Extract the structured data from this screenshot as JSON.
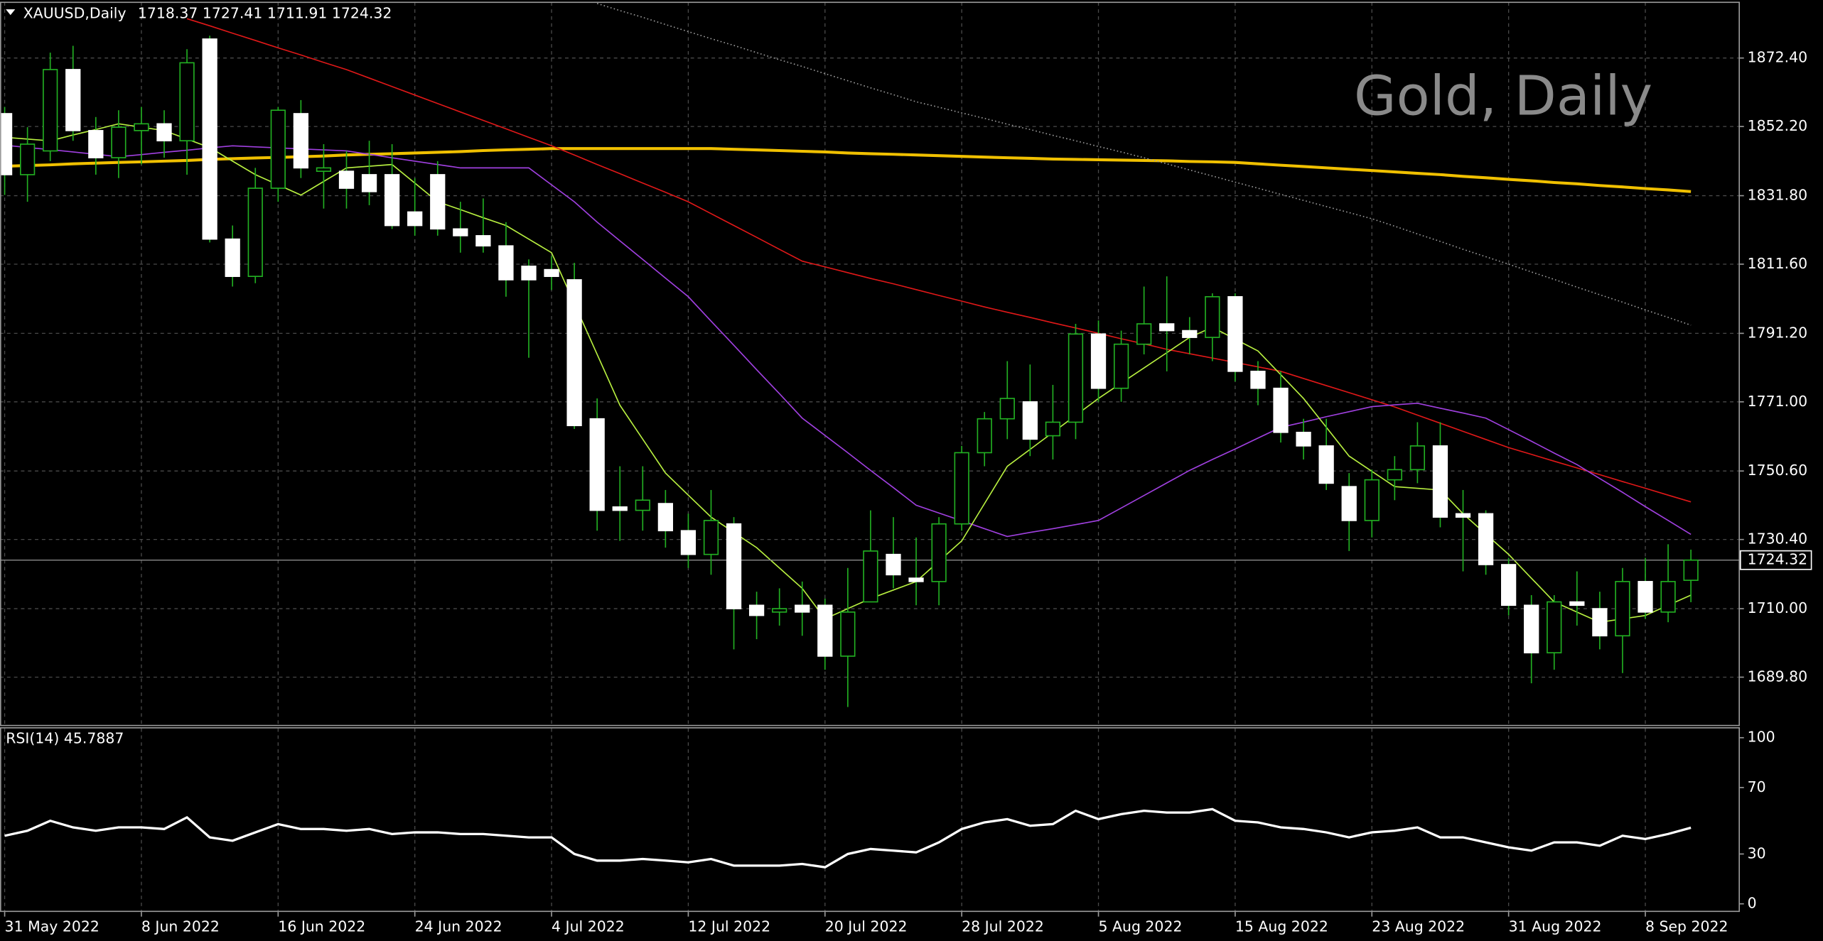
{
  "chart_data": {
    "type": "candlestick",
    "symbol": "XAUUSD,Daily",
    "title": "Gold, Daily",
    "categories": [
      "31 May 2022",
      null,
      null,
      null,
      null,
      null,
      "8 Jun 2022",
      null,
      null,
      null,
      null,
      null,
      "16 Jun 2022",
      null,
      null,
      null,
      null,
      null,
      "24 Jun 2022",
      null,
      null,
      null,
      null,
      null,
      "4 Jul 2022",
      null,
      null,
      null,
      null,
      null,
      "12 Jul 2022",
      null,
      null,
      null,
      null,
      null,
      "20 Jul 2022",
      null,
      null,
      null,
      null,
      null,
      "28 Jul 2022",
      null,
      null,
      null,
      null,
      null,
      "5 Aug 2022",
      null,
      null,
      null,
      null,
      null,
      "15 Aug 2022",
      null,
      null,
      null,
      null,
      null,
      "23 Aug 2022",
      null,
      null,
      null,
      null,
      null,
      "31 Aug 2022",
      null,
      null,
      null,
      null,
      null,
      "8 Sep 2022",
      null,
      null
    ],
    "open": [
      1856,
      1838,
      1845,
      1869,
      1851,
      1843,
      1851,
      1853,
      1848,
      1878,
      1819,
      1808,
      1834,
      1856,
      1839,
      1839,
      1838,
      1838,
      1827,
      1838,
      1822,
      1820,
      1817,
      1811,
      1810,
      1807,
      1766,
      1740,
      1739,
      1741,
      1733,
      1726,
      1735,
      1711,
      1709,
      1711,
      1711,
      1696,
      1712,
      1726,
      1719,
      1718,
      1735,
      1756,
      1766,
      1771,
      1761,
      1765,
      1791,
      1775,
      1788,
      1794,
      1792,
      1790,
      1802,
      1780,
      1775,
      1762,
      1758,
      1746,
      1736,
      1748,
      1751,
      1758,
      1738,
      1738,
      1723,
      1711,
      1697,
      1712,
      1710,
      1702,
      1718,
      1709,
      1718.37
    ],
    "high": [
      1858,
      1852,
      1874,
      1876,
      1855,
      1857,
      1858,
      1857,
      1875,
      1879,
      1823,
      1840,
      1858,
      1860,
      1847,
      1845,
      1848,
      1847,
      1837,
      1842,
      1830,
      1831,
      1824,
      1813,
      1814,
      1812,
      1772,
      1752,
      1752,
      1745,
      1738,
      1745,
      1737,
      1715,
      1716,
      1718,
      1713,
      1722,
      1739,
      1737,
      1731,
      1737,
      1758,
      1768,
      1783,
      1782,
      1776,
      1794,
      1795,
      1792,
      1805,
      1808,
      1796,
      1803,
      1803,
      1783,
      1780,
      1766,
      1766,
      1750,
      1751,
      1755,
      1765,
      1765,
      1745,
      1739,
      1725,
      1714,
      1714,
      1721,
      1715,
      1722,
      1725,
      1729,
      1727.41
    ],
    "low": [
      1832,
      1830,
      1842,
      1848,
      1838,
      1837,
      1841,
      1843,
      1838,
      1818,
      1805,
      1806,
      1830,
      1837,
      1828,
      1828,
      1829,
      1822,
      1820,
      1820,
      1815,
      1815,
      1802,
      1784,
      1804,
      1763,
      1733,
      1730,
      1733,
      1728,
      1722,
      1720,
      1698,
      1701,
      1705,
      1702,
      1692,
      1681,
      1712,
      1716,
      1711,
      1711,
      1733,
      1752,
      1760,
      1755,
      1754,
      1760,
      1771,
      1771,
      1785,
      1780,
      1785,
      1783,
      1777,
      1770,
      1759,
      1754,
      1745,
      1727,
      1731,
      1742,
      1747,
      1734,
      1721,
      1720,
      1708,
      1688,
      1692,
      1705,
      1698,
      1691,
      1707,
      1706,
      1711.91
    ],
    "close": [
      1838,
      1847,
      1869,
      1851,
      1843,
      1852,
      1853,
      1848,
      1871,
      1819,
      1808,
      1834,
      1857,
      1840,
      1840,
      1834,
      1833,
      1823,
      1823,
      1822,
      1820,
      1817,
      1807,
      1807,
      1808,
      1764,
      1739,
      1739,
      1742,
      1733,
      1726,
      1736,
      1710,
      1708,
      1710,
      1709,
      1696,
      1709,
      1727,
      1720,
      1718,
      1735,
      1756,
      1766,
      1772,
      1760,
      1765,
      1791,
      1775,
      1788,
      1794,
      1792,
      1790,
      1802,
      1780,
      1775,
      1762,
      1758,
      1747,
      1736,
      1748,
      1751,
      1758,
      1737,
      1737,
      1723,
      1711,
      1697,
      1712,
      1711,
      1702,
      1718,
      1709,
      1718,
      1724.32
    ],
    "up_color": "#22b022",
    "down_color": "#ffffff",
    "ylim": [
      1676.4,
      1887.8
    ],
    "yticks": [
      {
        "value": 1872.4,
        "label": "1872.40"
      },
      {
        "value": 1852.2,
        "label": "1852.20"
      },
      {
        "value": 1831.8,
        "label": "1831.80"
      },
      {
        "value": 1811.6,
        "label": "1811.60"
      },
      {
        "value": 1791.2,
        "label": "1791.20"
      },
      {
        "value": 1771,
        "label": "1771.00"
      },
      {
        "value": 1750.6,
        "label": "1750.60"
      },
      {
        "value": 1730.4,
        "label": "1730.40"
      },
      {
        "value": 1710,
        "label": "1710.00"
      },
      {
        "value": 1689.8,
        "label": "1689.80"
      }
    ],
    "grid": true,
    "series": [
      {
        "color": "#f0c000",
        "style": "thick",
        "values": [
          1840.5,
          1840.7,
          1840.9,
          1841.2,
          1841.4,
          1841.6,
          1841.8,
          1842.0,
          1842.2,
          1842.5,
          1842.7,
          1842.9,
          1843.1,
          1843.3,
          1843.5,
          1843.8,
          1844.0,
          1844.2,
          1844.4,
          1844.6,
          1844.8,
          1845.1,
          1845.3,
          1845.5,
          1845.7,
          1845.7,
          1845.7,
          1845.7,
          1845.7,
          1845.7,
          1845.7,
          1845.7,
          1845.5,
          1845.3,
          1845.1,
          1844.9,
          1844.7,
          1844.4,
          1844.2,
          1844.0,
          1843.8,
          1843.6,
          1843.4,
          1843.2,
          1843.0,
          1842.8,
          1842.6,
          1842.5,
          1842.4,
          1842.3,
          1842.2,
          1842.1,
          1841.9,
          1841.8,
          1841.6,
          1841.2,
          1840.8,
          1840.4,
          1840.0,
          1839.6,
          1839.2,
          1838.8,
          1838.4,
          1838.0,
          1837.5,
          1837.1,
          1836.6,
          1836.2,
          1835.7,
          1835.3,
          1834.8,
          1834.4,
          1833.9,
          1833.5,
          1833.0
        ]
      },
      {
        "color": "#9a9a9a",
        "style": "dotted",
        "values": [
          null,
          null,
          null,
          null,
          null,
          null,
          null,
          null,
          null,
          null,
          null,
          null,
          null,
          null,
          null,
          null,
          null,
          null,
          null,
          null,
          null,
          null,
          null,
          null,
          null,
          null,
          1888.5,
          1886.4,
          1884.4,
          1882.3,
          1880.2,
          1878.1,
          1876.1,
          1874.0,
          1871.9,
          1869.9,
          1867.8,
          1865.7,
          1863.6,
          1861.6,
          1859.5,
          1857.9,
          1856.2,
          1854.6,
          1852.9,
          1851.3,
          1849.6,
          1848.0,
          1846.3,
          1844.7,
          1843.0,
          1841.2,
          1839.4,
          1837.6,
          1835.8,
          1834.0,
          1832.2,
          1830.4,
          1828.6,
          1826.8,
          1825.0,
          1822.8,
          1820.5,
          1818.3,
          1816.0,
          1813.8,
          1811.6,
          1809.3,
          1807.1,
          1804.8,
          1802.6,
          1800.4,
          1798.1,
          1795.9,
          1793.6
        ]
      },
      {
        "color": "#e01818",
        "style": "solid",
        "values": [
          null,
          null,
          null,
          null,
          null,
          null,
          null,
          null,
          1884,
          1881.9,
          1879.7,
          1877.6,
          1875.4,
          1873.3,
          1871.1,
          1869,
          1866.5,
          1864,
          1861.5,
          1859,
          1856.5,
          1854,
          1851.5,
          1849,
          1846.5,
          1843.8,
          1841,
          1838.3,
          1835.5,
          1832.8,
          1830,
          1826.5,
          1823,
          1819.5,
          1816,
          1812.5,
          1810.8,
          1809.1,
          1807.4,
          1805.8,
          1804.1,
          1802.4,
          1800.7,
          1799,
          1797.4,
          1795.9,
          1794.3,
          1792.8,
          1791.2,
          1789.6,
          1788.1,
          1786.5,
          1785.2,
          1783.9,
          1782.6,
          1781.3,
          1780,
          1777.9,
          1775.8,
          1773.7,
          1771.6,
          1769.5,
          1767.1,
          1764.7,
          1762.3,
          1759.9,
          1757.5,
          1755.5,
          1753.5,
          1751.5,
          1749.5,
          1747.5,
          1745.5,
          1743.5,
          1741.5
        ]
      },
      {
        "color": "#a040e0",
        "style": "solid",
        "values": [
          1846.7,
          1846.0,
          1845.4,
          1844.7,
          1844.0,
          1843.3,
          1843.9,
          1844.6,
          1845.2,
          1845.9,
          1846.5,
          1846.2,
          1845.9,
          1845.6,
          1845.3,
          1845.0,
          1844.0,
          1843.0,
          1842.0,
          1841.0,
          1840.0,
          1840,
          1840,
          1840,
          1835,
          1830,
          1824,
          1818.5,
          1813,
          1807.5,
          1802,
          1794.8,
          1787.7,
          1780.5,
          1773.4,
          1766.2,
          1761.1,
          1756,
          1750.8,
          1745.7,
          1740.5,
          1738.2,
          1735.9,
          1733.6,
          1731.3,
          1732.5,
          1733.6,
          1734.8,
          1736,
          1739.7,
          1743.4,
          1747.1,
          1750.8,
          1754,
          1757.1,
          1760.3,
          1763.5,
          1765,
          1766.6,
          1768.1,
          1769.6,
          1770.1,
          1770.6,
          1769.1,
          1767.7,
          1766.2,
          1762.8,
          1759.4,
          1755.9,
          1752.5,
          1748.4,
          1744.3,
          1740.1,
          1736,
          1731.9
        ]
      },
      {
        "color": "#b8f040",
        "style": "solid",
        "values": [
          1849,
          1848.5,
          1848,
          1849.7,
          1851.3,
          1853,
          1852,
          1851,
          1848.5,
          1846,
          1842,
          1838,
          1835,
          1832,
          1836,
          1840,
          1840.5,
          1841,
          1835.5,
          1830,
          1827.7,
          1825.3,
          1823,
          1819,
          1815,
          1800,
          1785,
          1770,
          1760,
          1750,
          1743.5,
          1737,
          1732.5,
          1728,
          1722,
          1716,
          1707,
          1710,
          1713,
          1715.5,
          1718,
          1724,
          1730,
          1741,
          1752,
          1757,
          1762,
          1767,
          1772,
          1776.5,
          1781,
          1785.5,
          1790,
          1793,
          1789.5,
          1786,
          1779,
          1772,
          1763.5,
          1755,
          1750.5,
          1746,
          1745.5,
          1745,
          1738,
          1732,
          1726,
          1719,
          1712,
          1709,
          1706,
          1707,
          1708,
          1711,
          1714
        ]
      }
    ],
    "rsi": {
      "label": "RSI(14)",
      "color": "#ffffff",
      "ylim": [
        0,
        100
      ],
      "yticks": [
        0,
        30,
        70,
        100
      ],
      "values": [
        41,
        44,
        50,
        46,
        44,
        46,
        46,
        45,
        52,
        40,
        38,
        43,
        48,
        45,
        45,
        44,
        45,
        42,
        43,
        43,
        42,
        42,
        41,
        40,
        40,
        30,
        26,
        26,
        27,
        26,
        25,
        27,
        23,
        23,
        23,
        24,
        22,
        30,
        33,
        32,
        31,
        37,
        45,
        49,
        51,
        47,
        48,
        56,
        51,
        54,
        56,
        55,
        55,
        57,
        50,
        49,
        46,
        45,
        43,
        40,
        43,
        44,
        46,
        40,
        40,
        37,
        34,
        32,
        37,
        37,
        35,
        41,
        39,
        42,
        45.7887
      ]
    }
  }
}
